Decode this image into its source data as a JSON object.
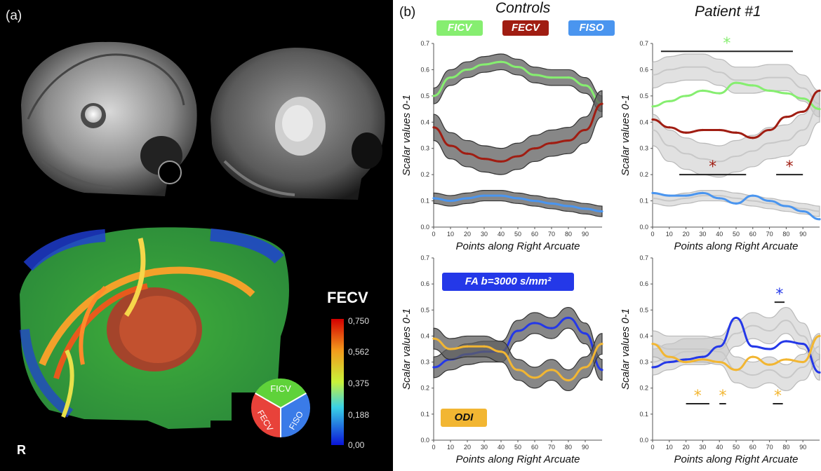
{
  "panel_a": {
    "label": "(a)",
    "colorbar_title": "FECV",
    "colorbar_ticks": [
      "0,750",
      "0,562",
      "0,375",
      "0,188",
      "0,00"
    ],
    "orientation_label": "R",
    "pie_labels": [
      "FICV",
      "FECV",
      "FISO"
    ]
  },
  "panel_b": {
    "label": "(b)",
    "col_controls": "Controls",
    "col_patient": "Patient #1",
    "legend": [
      {
        "label": "FICV",
        "color": "#86ee70"
      },
      {
        "label": "FECV",
        "color": "#a01d12"
      },
      {
        "label": "FISO",
        "color": "#4a95ef"
      }
    ],
    "fa_label": "FA b=3000 s/mm²",
    "odi_label": "ODI"
  },
  "colors": {
    "ficv": "#86ee70",
    "fecv": "#a01d12",
    "fiso": "#4a95ef",
    "fa": "#2438e8",
    "odi": "#f2b632"
  },
  "chart_data": [
    {
      "type": "line",
      "name": "Controls top",
      "xlabel": "Points along Right Arcuate",
      "ylabel": "Scalar values 0-1",
      "xlim": [
        0,
        100
      ],
      "ylim": [
        0,
        0.7
      ],
      "x_ticks": [
        "0",
        "10",
        "20",
        "30",
        "40",
        "50",
        "60",
        "70",
        "80",
        "90"
      ],
      "y_ticks": [
        "0.0",
        "0.1",
        "0.2",
        "0.3",
        "0.4",
        "0.5",
        "0.6",
        "0.7"
      ],
      "x": [
        0,
        10,
        20,
        30,
        40,
        50,
        60,
        70,
        80,
        90,
        100
      ],
      "series": [
        {
          "name": "FICV",
          "color": "#86ee70",
          "band": 0.03,
          "values": [
            0.5,
            0.57,
            0.6,
            0.62,
            0.63,
            0.61,
            0.58,
            0.57,
            0.57,
            0.54,
            0.47
          ]
        },
        {
          "name": "FECV",
          "color": "#a01d12",
          "band": 0.05,
          "values": [
            0.38,
            0.31,
            0.28,
            0.26,
            0.25,
            0.27,
            0.3,
            0.32,
            0.33,
            0.37,
            0.47
          ]
        },
        {
          "name": "FISO",
          "color": "#4a95ef",
          "band": 0.02,
          "values": [
            0.11,
            0.1,
            0.11,
            0.12,
            0.12,
            0.11,
            0.1,
            0.09,
            0.08,
            0.07,
            0.06
          ]
        }
      ],
      "annotations": []
    },
    {
      "type": "line",
      "name": "Patient top",
      "xlabel": "Points along Right Arcuate",
      "ylabel": "Scalar values 0-1",
      "xlim": [
        0,
        100
      ],
      "ylim": [
        0,
        0.7
      ],
      "x_ticks": [
        "0",
        "10",
        "20",
        "30",
        "40",
        "50",
        "60",
        "70",
        "80",
        "90"
      ],
      "y_ticks": [
        "0.0",
        "0.1",
        "0.2",
        "0.3",
        "0.4",
        "0.5",
        "0.6",
        "0.7"
      ],
      "x": [
        0,
        10,
        20,
        30,
        40,
        50,
        60,
        70,
        80,
        90,
        100
      ],
      "series": [
        {
          "name": "FICV",
          "color": "#86ee70",
          "band": 0.0,
          "values": [
            0.46,
            0.48,
            0.5,
            0.52,
            0.51,
            0.55,
            0.54,
            0.52,
            0.51,
            0.49,
            0.45
          ]
        },
        {
          "name": "FECV",
          "color": "#a01d12",
          "band": 0.0,
          "values": [
            0.41,
            0.38,
            0.36,
            0.37,
            0.37,
            0.36,
            0.34,
            0.37,
            0.42,
            0.44,
            0.52
          ]
        },
        {
          "name": "FISO",
          "color": "#4a95ef",
          "band": 0.0,
          "values": [
            0.13,
            0.12,
            0.12,
            0.13,
            0.11,
            0.09,
            0.12,
            0.1,
            0.08,
            0.06,
            0.03
          ]
        }
      ],
      "reference": [
        {
          "values": [
            0.58,
            0.6,
            0.61,
            0.61,
            0.59,
            0.56,
            0.56,
            0.57,
            0.57,
            0.53,
            0.47
          ],
          "band": 0.05
        },
        {
          "values": [
            0.37,
            0.31,
            0.28,
            0.26,
            0.25,
            0.27,
            0.29,
            0.32,
            0.33,
            0.37,
            0.46
          ],
          "band": 0.06
        },
        {
          "values": [
            0.11,
            0.1,
            0.11,
            0.12,
            0.12,
            0.11,
            0.1,
            0.09,
            0.08,
            0.07,
            0.06
          ],
          "band": 0.02
        }
      ],
      "annotations": [
        {
          "x0": 5,
          "x1": 84,
          "y": 0.67,
          "color": "#86ee70"
        },
        {
          "x0": 16,
          "x1": 56,
          "y": 0.2,
          "color": "#a01d12"
        },
        {
          "x0": 74,
          "x1": 90,
          "y": 0.2,
          "color": "#a01d12"
        }
      ]
    },
    {
      "type": "line",
      "name": "Controls bottom",
      "xlabel": "Points along Right Arcuate",
      "ylabel": "Scalar values 0-1",
      "xlim": [
        0,
        100
      ],
      "ylim": [
        0,
        0.7
      ],
      "x_ticks": [
        "0",
        "10",
        "20",
        "30",
        "40",
        "50",
        "60",
        "70",
        "80",
        "90"
      ],
      "y_ticks": [
        "0.0",
        "0.1",
        "0.2",
        "0.3",
        "0.4",
        "0.5",
        "0.6",
        "0.7"
      ],
      "x": [
        0,
        10,
        20,
        30,
        40,
        50,
        60,
        70,
        80,
        90,
        100
      ],
      "series": [
        {
          "name": "FA b=3000 s/mm²",
          "color": "#2438e8",
          "band": 0.04,
          "values": [
            0.28,
            0.31,
            0.33,
            0.34,
            0.34,
            0.42,
            0.45,
            0.43,
            0.47,
            0.41,
            0.27
          ]
        },
        {
          "name": "ODI",
          "color": "#f2b632",
          "band": 0.04,
          "values": [
            0.39,
            0.35,
            0.36,
            0.36,
            0.34,
            0.27,
            0.24,
            0.27,
            0.23,
            0.28,
            0.37
          ]
        }
      ],
      "annotations": []
    },
    {
      "type": "line",
      "name": "Patient bottom",
      "xlabel": "Points along Right Arcuate",
      "ylabel": "Scalar values 0-1",
      "xlim": [
        0,
        100
      ],
      "ylim": [
        0,
        0.7
      ],
      "x_ticks": [
        "0",
        "10",
        "20",
        "30",
        "40",
        "50",
        "60",
        "70",
        "80",
        "90"
      ],
      "y_ticks": [
        "0.0",
        "0.1",
        "0.2",
        "0.3",
        "0.4",
        "0.5",
        "0.6",
        "0.7"
      ],
      "x": [
        0,
        10,
        20,
        30,
        40,
        50,
        60,
        70,
        80,
        90,
        100
      ],
      "series": [
        {
          "name": "FA b=3000 s/mm²",
          "color": "#2438e8",
          "band": 0.0,
          "values": [
            0.28,
            0.3,
            0.31,
            0.32,
            0.36,
            0.47,
            0.36,
            0.35,
            0.38,
            0.37,
            0.26
          ]
        },
        {
          "name": "ODI",
          "color": "#f2b632",
          "band": 0.0,
          "values": [
            0.37,
            0.32,
            0.3,
            0.31,
            0.3,
            0.27,
            0.32,
            0.29,
            0.31,
            0.3,
            0.4
          ]
        }
      ],
      "reference": [
        {
          "values": [
            0.3,
            0.32,
            0.34,
            0.34,
            0.35,
            0.41,
            0.44,
            0.42,
            0.46,
            0.4,
            0.28
          ],
          "band": 0.05
        },
        {
          "values": [
            0.37,
            0.35,
            0.35,
            0.35,
            0.34,
            0.27,
            0.25,
            0.27,
            0.24,
            0.28,
            0.36
          ],
          "band": 0.05
        }
      ],
      "annotations": [
        {
          "x0": 20,
          "x1": 34,
          "y": 0.14,
          "color": "#f2b632"
        },
        {
          "x0": 40,
          "x1": 44,
          "y": 0.14,
          "color": "#f2b632"
        },
        {
          "x0": 72,
          "x1": 78,
          "y": 0.14,
          "color": "#f2b632"
        },
        {
          "x0": 73,
          "x1": 79,
          "y": 0.53,
          "color": "#2438e8"
        }
      ]
    }
  ]
}
